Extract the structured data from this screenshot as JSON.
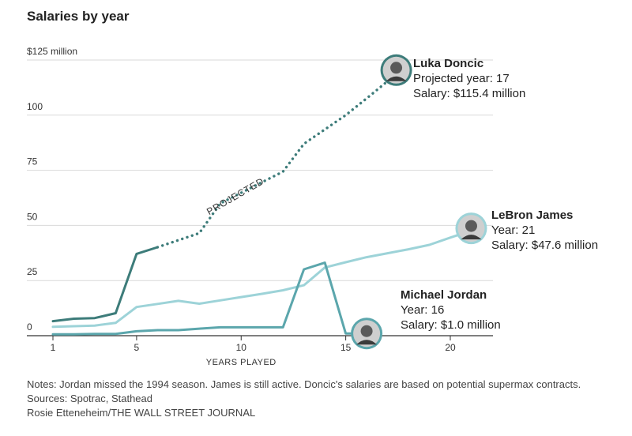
{
  "title": "Salaries by year",
  "chart_data": {
    "type": "line",
    "xlabel": "YEARS PLAYED",
    "ylabel": "",
    "xlim": [
      1,
      21
    ],
    "ylim": [
      0,
      125
    ],
    "y_ticks": [
      {
        "value": 125,
        "label": "$125 million"
      },
      {
        "value": 100,
        "label": "100"
      },
      {
        "value": 75,
        "label": "75"
      },
      {
        "value": 50,
        "label": "50"
      },
      {
        "value": 25,
        "label": "25"
      },
      {
        "value": 0,
        "label": "0"
      }
    ],
    "x_ticks": [
      1,
      5,
      10,
      15,
      20
    ],
    "grid": true,
    "projected_label": "PROJECTED",
    "series": [
      {
        "name": "LeBron James",
        "color": "#9dd3d8",
        "x": [
          1,
          2,
          3,
          4,
          5,
          6,
          7,
          8,
          9,
          10,
          11,
          12,
          13,
          14,
          15,
          16,
          17,
          18,
          19,
          20,
          21
        ],
        "y": [
          4.0,
          4.3,
          4.6,
          5.8,
          13.0,
          14.4,
          15.8,
          14.5,
          16.0,
          17.5,
          19.0,
          20.6,
          22.9,
          30.9,
          33.3,
          35.6,
          37.4,
          39.2,
          41.2,
          44.5,
          47.6
        ]
      },
      {
        "name": "Michael Jordan",
        "color": "#5ba6ac",
        "x": [
          1,
          2,
          3,
          4,
          5,
          6,
          7,
          8,
          9,
          10,
          11,
          12,
          13,
          14,
          15,
          16
        ],
        "y": [
          0.6,
          0.6,
          0.8,
          0.8,
          2.0,
          2.5,
          2.5,
          3.2,
          3.8,
          3.8,
          3.8,
          3.8,
          30.1,
          33.1,
          1.0,
          1.0
        ]
      },
      {
        "name": "Luka Doncic",
        "color": "#3d7c7a",
        "x": [
          1,
          2,
          3,
          4,
          5,
          6
        ],
        "y": [
          6.6,
          7.7,
          8.0,
          10.2,
          37.1,
          40.1
        ]
      },
      {
        "name": "Luka Doncic projected",
        "color": "#3d7c7a",
        "dashed": true,
        "x": [
          6,
          7,
          8,
          9,
          10,
          11,
          12,
          13,
          14,
          15,
          16,
          17
        ],
        "y": [
          40.1,
          43.3,
          46.5,
          60.0,
          64.8,
          69.6,
          74.4,
          87.0,
          93.5,
          100.0,
          107.6,
          115.4
        ]
      }
    ],
    "annotations": [
      {
        "name": "Luka Doncic",
        "line1": "Projected year: 17",
        "line2": "Salary: $115.4 million",
        "x": 17,
        "y": 115.4
      },
      {
        "name": "LeBron James",
        "line1": "Year: 21",
        "line2": "Salary: $47.6 million",
        "x": 21,
        "y": 47.6
      },
      {
        "name": "Michael Jordan",
        "line1": "Year: 16",
        "line2": "Salary: $1.0 million",
        "x": 16,
        "y": 1.0
      }
    ]
  },
  "notes": {
    "notes_line": "Notes: Jordan missed the 1994 season. James is still active. Doncic's salaries are based on potential supermax contracts.",
    "sources_line": "Sources: Spotrac, Stathead",
    "credit_line": "Rosie Etteneheim/THE WALL STREET JOURNAL"
  }
}
